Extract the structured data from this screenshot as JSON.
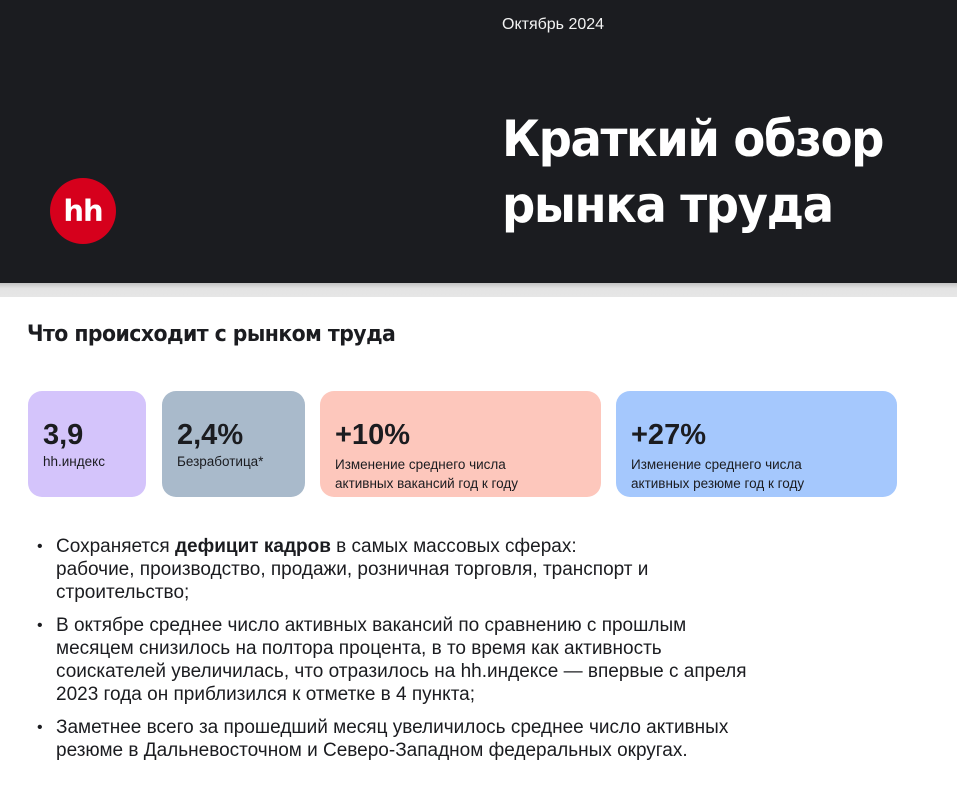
{
  "header": {
    "date": "Октябрь 2024",
    "logo_text": "hh",
    "title_line1": "Краткий обзор",
    "title_line2": "рынка труда"
  },
  "section": {
    "title": "Что происходит с рынком труда"
  },
  "cards": [
    {
      "value": "3,9",
      "label": "hh.индекс",
      "color": "#d4c4fb"
    },
    {
      "value": "2,4%",
      "label": "Безработица*",
      "color": "#a9bacb"
    },
    {
      "value": "+10%",
      "label_line1": "Изменение среднего числа",
      "label_line2": "активных вакансий год к году",
      "color": "#fdc7bc"
    },
    {
      "value": "+27%",
      "label_line1": "Изменение среднего числа",
      "label_line2": "активных резюме год к году",
      "color": "#a5c8fd"
    }
  ],
  "bullets": [
    {
      "pre": "Сохраняется ",
      "bold": "дефицит кадров",
      "post": " в самых массовых сферах:",
      "line2": "рабочие, производство, продажи, розничная торговля, транспорт и",
      "line3": "строительство;"
    },
    {
      "line1": "В октябре среднее число активных вакансий по сравнению с прошлым",
      "line2": "месяцем снизилось на полтора процента, в то время как активность",
      "line3": "соискателей увеличилась, что отразилось на hh.индексе — впервые с апреля",
      "line4": "2023 года он приблизился к отметке в 4 пункта;"
    },
    {
      "line1": "Заметнее всего за прошедший месяц увеличилось среднее число активных",
      "line2": "резюме в Дальневосточном и Северо-Западном федеральных округах."
    }
  ],
  "bullet_glyph": "•",
  "colors": {
    "header_bg": "#1b1c20",
    "brand_red": "#d6001c"
  }
}
